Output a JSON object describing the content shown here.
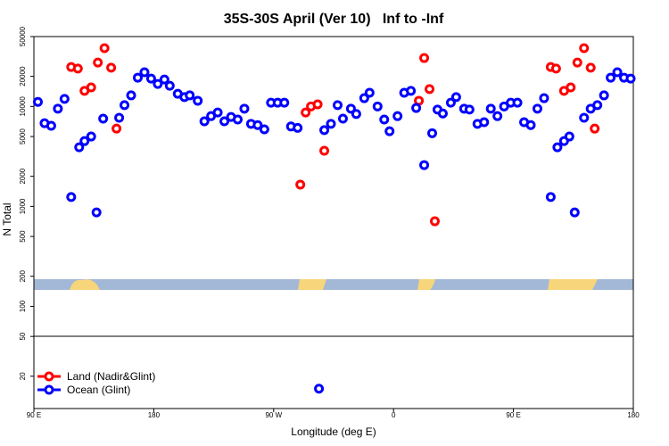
{
  "chart_data": {
    "type": "scatter",
    "title": "35S-30S April (Ver 10)   Inf to -Inf",
    "x_label": "Longitude (deg E)",
    "y_label": "N Total",
    "log_y": true,
    "xlim": [
      90,
      540
    ],
    "ylim": [
      9.5,
      50000
    ],
    "xticks": [
      {
        "value": 90,
        "label": "90 E"
      },
      180,
      {
        "value": 270,
        "label": "90 W"
      },
      {
        "value": 360,
        "label": "0"
      },
      {
        "value": 450,
        "label": "90 E"
      },
      {
        "value": 540,
        "label": "180"
      }
    ],
    "yticks": [
      20,
      50,
      100,
      200,
      500,
      1000,
      2000,
      5000,
      10000,
      20000,
      50000
    ],
    "series": [
      {
        "name": "Land (Nadir&Glint)",
        "color": "#ff0000",
        "x": [
          118,
          123,
          128,
          133,
          138,
          143,
          148,
          152,
          290,
          294,
          298,
          303,
          308,
          379,
          383,
          387,
          391,
          478,
          482,
          488,
          493,
          498,
          503,
          508,
          511
        ],
        "values": [
          24800,
          23900,
          14300,
          15500,
          27500,
          38300,
          24400,
          6000,
          1650,
          8700,
          10000,
          10500,
          3600,
          11400,
          30500,
          14900,
          710,
          24800,
          23900,
          14300,
          15500,
          27500,
          38300,
          24400,
          6000
        ]
      },
      {
        "name": "Ocean (Glint)",
        "color": "#0000ff",
        "x": [
          93,
          98,
          103,
          108,
          113,
          118,
          124,
          128,
          133,
          137,
          142,
          154,
          158,
          163,
          168,
          173,
          178,
          183,
          188,
          192,
          198,
          203,
          207,
          213,
          218,
          223,
          228,
          233,
          238,
          243,
          248,
          253,
          258,
          263,
          268,
          273,
          278,
          283,
          288,
          304,
          308,
          313,
          318,
          322,
          328,
          332,
          338,
          342,
          348,
          353,
          357,
          363,
          368,
          373,
          377,
          383,
          389,
          393,
          397,
          403,
          407,
          413,
          417,
          423,
          428,
          433,
          438,
          443,
          448,
          453,
          458,
          463,
          468,
          473,
          478,
          483,
          488,
          492,
          496,
          503,
          508,
          513,
          518,
          523,
          528,
          533,
          538
        ],
        "values": [
          11100,
          6800,
          6400,
          9500,
          11900,
          1240,
          3900,
          4500,
          5000,
          870,
          7550,
          7700,
          10300,
          12900,
          19400,
          22000,
          19000,
          16800,
          18600,
          16100,
          13400,
          12400,
          12900,
          11400,
          7100,
          8000,
          8700,
          7100,
          7850,
          7400,
          9500,
          6700,
          6500,
          5900,
          10900,
          10900,
          10900,
          6300,
          6100,
          15,
          5800,
          6700,
          10300,
          7550,
          9500,
          8400,
          12100,
          13700,
          10000,
          7400,
          5650,
          8000,
          13700,
          14300,
          9650,
          2590,
          5400,
          9300,
          8500,
          10900,
          12400,
          9500,
          9300,
          6700,
          6950,
          9500,
          8000,
          10000,
          10900,
          10900,
          6950,
          6500,
          9500,
          12100,
          1240,
          3900,
          4500,
          5000,
          870,
          7700,
          9500,
          10300,
          12900,
          19400,
          22000,
          19400,
          19000
        ]
      }
    ]
  }
}
